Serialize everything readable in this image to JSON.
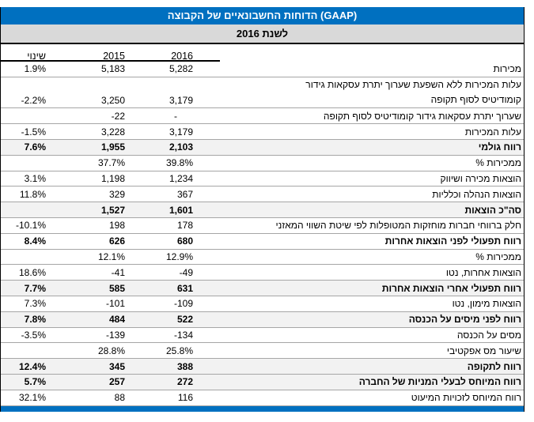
{
  "report": {
    "title": "הדוחות החשבונאיים של הקבוצה (GAAP)",
    "subtitle": "לשנת 2016",
    "columns": {
      "change": "שינוי",
      "y2015": "2015",
      "y2016": "2016",
      "label": ""
    },
    "colors": {
      "title_bar_blue": "#0070C0",
      "subtitle_bar_gray": "#D9D9D9",
      "shaded_row_gray": "#F2F2F2",
      "row_line_gray": "#A6A6A6",
      "title_text": "#FFFFFF"
    },
    "rows": [
      {
        "label": "מכירות",
        "change": "1.9%",
        "y2015": "5,183",
        "y2016": "5,282",
        "bold": false,
        "shaded": false
      },
      {
        "label": "עלות המכירות ללא השפעת שערוך יתרת עסקאות גידור",
        "label2": "קומודיטיס לסוף תקופה",
        "change": "-2.2%",
        "y2015": "3,250",
        "y2016": "3,179",
        "bold": false,
        "shaded": false
      },
      {
        "label": "שערוך יתרת עסקאות גידור קומודיטיס לסוף תקופה",
        "change": "",
        "y2015": "-22",
        "y2016": "-",
        "bold": false,
        "shaded": false
      },
      {
        "label": "עלות המכירות",
        "change": "-1.5%",
        "y2015": "3,228",
        "y2016": "3,179",
        "bold": false,
        "shaded": false
      },
      {
        "label": "רווח גולמי",
        "change": "7.6%",
        "y2015": "1,955",
        "y2016": "2,103",
        "bold": true,
        "shaded": true
      },
      {
        "label": "% ממכירות",
        "change": "",
        "y2015": "37.7%",
        "y2016": "39.8%",
        "bold": false,
        "shaded": false
      },
      {
        "label": "הוצאות מכירה ושיווק",
        "change": "3.1%",
        "y2015": "1,198",
        "y2016": "1,234",
        "bold": false,
        "shaded": false
      },
      {
        "label": "הוצאות הנהלה וכלליות",
        "change": "11.8%",
        "y2015": "329",
        "y2016": "367",
        "bold": false,
        "shaded": false
      },
      {
        "label": "סה\"כ הוצאות",
        "change": "",
        "y2015": "1,527",
        "y2016": "1,601",
        "bold": true,
        "shaded": true
      },
      {
        "label": "חלק ברווחי חברות מוחזקות המטופלות לפי שיטת השווי המאזני",
        "change": "-10.1%",
        "y2015": "198",
        "y2016": "178",
        "bold": false,
        "shaded": false
      },
      {
        "label": "רווח תפעולי לפני הוצאות אחרות",
        "change": "8.4%",
        "y2015": "626",
        "y2016": "680",
        "bold": true,
        "shaded": false
      },
      {
        "label": "% ממכירות",
        "change": "",
        "y2015": "12.1%",
        "y2016": "12.9%",
        "bold": false,
        "shaded": false
      },
      {
        "label": "הוצאות אחרות, נטו",
        "change": "18.6%",
        "y2015": "-41",
        "y2016": "-49",
        "bold": false,
        "shaded": false
      },
      {
        "label": "רווח תפעולי אחרי הוצאות אחרות",
        "change": "7.7%",
        "y2015": "585",
        "y2016": "631",
        "bold": true,
        "shaded": true
      },
      {
        "label": "הוצאות מימון, נטו",
        "change": "7.3%",
        "y2015": "-101",
        "y2016": "-109",
        "bold": false,
        "shaded": false
      },
      {
        "label": "רווח לפני מיסים על הכנסה",
        "change": "7.8%",
        "y2015": "484",
        "y2016": "522",
        "bold": true,
        "shaded": true
      },
      {
        "label": "מסים על הכנסה",
        "change": "-3.5%",
        "y2015": "-139",
        "y2016": "-134",
        "bold": false,
        "shaded": false
      },
      {
        "label": "שיעור מס אפקטיבי",
        "change": "",
        "y2015": "28.8%",
        "y2016": "25.8%",
        "bold": false,
        "shaded": false
      },
      {
        "label": "רווח לתקופה",
        "change": "12.4%",
        "y2015": "345",
        "y2016": "388",
        "bold": true,
        "shaded": true
      },
      {
        "label": "רווח המיוחס לבעלי המניות של החברה",
        "change": "5.7%",
        "y2015": "257",
        "y2016": "272",
        "bold": true,
        "shaded": true
      },
      {
        "label": "רווח המיוחס לזכויות המיעוט",
        "change": "32.1%",
        "y2015": "88",
        "y2016": "116",
        "bold": false,
        "shaded": false
      }
    ]
  }
}
